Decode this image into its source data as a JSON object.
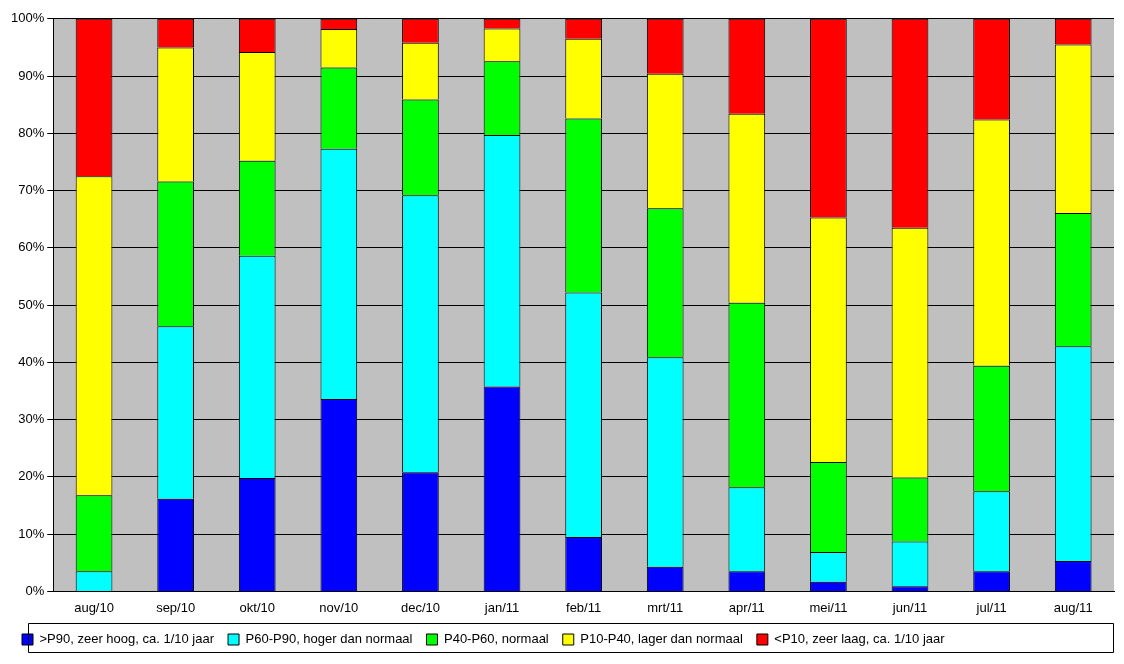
{
  "chart_data": {
    "type": "bar",
    "stacked": true,
    "categories": [
      "aug/10",
      "sep/10",
      "okt/10",
      "nov/10",
      "dec/10",
      "jan/11",
      "feb/11",
      "mrt/11",
      "apr/11",
      "mei/11",
      "jun/11",
      "jul/11",
      "aug/11"
    ],
    "series": [
      {
        "name": ">P90, zeer hoog, ca. 1/10 jaar",
        "color": "#0000ff",
        "values": [
          0,
          16.2,
          19.8,
          33.6,
          20.8,
          35.8,
          9.5,
          4.3,
          3.5,
          1.7,
          0.9,
          3.5,
          5.3
        ]
      },
      {
        "name": "P60-P90, hoger dan normaal",
        "color": "#00ffff",
        "values": [
          3.5,
          30.1,
          38.8,
          43.7,
          48.4,
          43.9,
          42.7,
          36.6,
          14.7,
          5.2,
          7.8,
          14,
          37.5
        ]
      },
      {
        "name": "P40-P60, normaal",
        "color": "#00ff00",
        "values": [
          13.3,
          25.3,
          16.6,
          14.2,
          16.7,
          12.9,
          30.4,
          26,
          32.2,
          15.7,
          11.2,
          21.9,
          23.3
        ]
      },
      {
        "name": "P10-P40, lager dan normaal",
        "color": "#ffff00",
        "values": [
          55.7,
          23.4,
          19,
          6.7,
          9.9,
          5.7,
          13.9,
          23.5,
          33,
          42.7,
          43.6,
          43,
          29.4
        ]
      },
      {
        "name": "<P10, zeer laag, ca. 1/10 jaar",
        "color": "#ff0000",
        "values": [
          27.5,
          5,
          5.8,
          1.8,
          4.2,
          1.7,
          3.5,
          9.6,
          16.6,
          34.7,
          36.5,
          17.6,
          4.5
        ]
      }
    ],
    "ylim": [
      0,
      100
    ],
    "yticks": [
      {
        "value": 0,
        "label": "0%"
      },
      {
        "value": 10,
        "label": "10%"
      },
      {
        "value": 20,
        "label": "20%"
      },
      {
        "value": 30,
        "label": "30%"
      },
      {
        "value": 40,
        "label": "40%"
      },
      {
        "value": 50,
        "label": "50%"
      },
      {
        "value": 60,
        "label": "60%"
      },
      {
        "value": 70,
        "label": "70%"
      },
      {
        "value": 80,
        "label": "80%"
      },
      {
        "value": 90,
        "label": "90%"
      },
      {
        "value": 100,
        "label": "100%"
      }
    ],
    "grid": "y",
    "legend": "bottom"
  }
}
